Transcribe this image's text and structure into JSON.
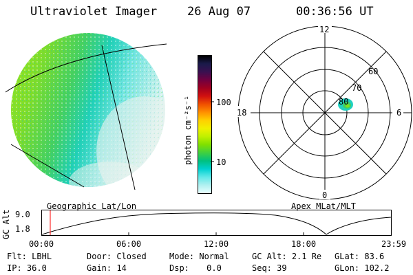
{
  "header": {
    "instrument": "Ultraviolet Imager",
    "date": "26 Aug 07",
    "time": "00:36:56 UT"
  },
  "colorbar": {
    "unit_label": "photon cm⁻²s⁻¹",
    "ticks": [
      {
        "label": "100",
        "value": 100
      },
      {
        "label": "10",
        "value": 10
      }
    ],
    "colors": [
      "#000000",
      "#1a1a4a",
      "#3a1050",
      "#700040",
      "#a00020",
      "#d01010",
      "#f05000",
      "#ff9000",
      "#ffd000",
      "#f0f000",
      "#c0f000",
      "#80e000",
      "#40d040",
      "#00c080",
      "#00d0d0",
      "#60e8e8",
      "#b0f0f0",
      "#e8ffff"
    ]
  },
  "polar_grid": {
    "mlt_labels": [
      "12",
      "18",
      "6",
      "0"
    ],
    "lat_labels": [
      "60",
      "70",
      "80"
    ]
  },
  "map_labels": {
    "left": "Geographic Lat/Lon",
    "right": "Apex MLat/MLT"
  },
  "altitude_plot": {
    "ylabel": "GC Alt",
    "yticks": [
      "9.0",
      "1.8"
    ],
    "xticks": [
      "00:00",
      "06:00",
      "12:00",
      "18:00",
      "23:59"
    ],
    "marker_time": "00:36:56"
  },
  "status": {
    "flt_label": "Flt:",
    "flt_value": "LBHL",
    "ip_label": "IP:",
    "ip_value": "36.0",
    "door_label": "Door:",
    "door_value": "Closed",
    "gain_label": "Gain:",
    "gain_value": "14",
    "mode_label": "Mode:",
    "mode_value": "Normal",
    "dsp_label": "Dsp:",
    "dsp_value": "0.0",
    "gcalt_label": "GC Alt:",
    "gcalt_value": "2.1 Re",
    "seq_label": "Seq:",
    "seq_value": "39",
    "glat_label": "GLat:",
    "glat_value": "83.6",
    "glon_label": "GLon:",
    "glon_value": "102.2"
  }
}
